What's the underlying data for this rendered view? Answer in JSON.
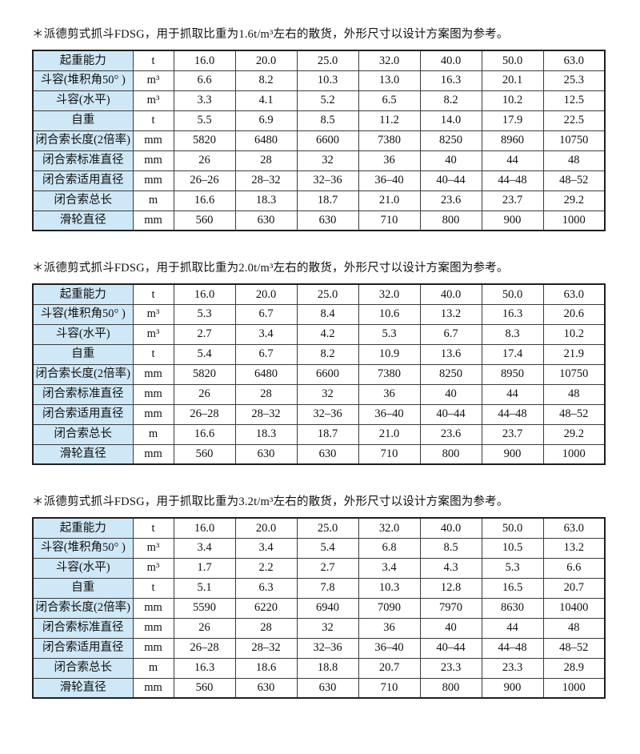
{
  "colors": {
    "label_bg": "#cfe8f7",
    "border": "#3c3c3c",
    "outer_border": "#1f1f1f",
    "text": "#111111",
    "page_bg": "#ffffff"
  },
  "tables": [
    {
      "caption": "＊派德剪式抓斗FDSG，用于抓取比重为1.6t/m³左右的散货，外形尺寸以设计方案图为参考。",
      "rows": [
        {
          "label": "起重能力",
          "unit": "t",
          "values": [
            "16.0",
            "20.0",
            "25.0",
            "32.0",
            "40.0",
            "50.0",
            "63.0"
          ]
        },
        {
          "label": "斗容(堆积角50° )",
          "unit": "m³",
          "values": [
            "6.6",
            "8.2",
            "10.3",
            "13.0",
            "16.3",
            "20.1",
            "25.3"
          ]
        },
        {
          "label": "斗容(水平)",
          "unit": "m³",
          "values": [
            "3.3",
            "4.1",
            "5.2",
            "6.5",
            "8.2",
            "10.2",
            "12.5"
          ]
        },
        {
          "label": "自重",
          "unit": "t",
          "values": [
            "5.5",
            "6.9",
            "8.5",
            "11.2",
            "14.0",
            "17.9",
            "22.5"
          ]
        },
        {
          "label": "闭合索长度(2倍率)",
          "unit": "mm",
          "values": [
            "5820",
            "6480",
            "6600",
            "7380",
            "8250",
            "8960",
            "10750"
          ]
        },
        {
          "label": "闭合索标准直径",
          "unit": "mm",
          "values": [
            "26",
            "28",
            "32",
            "36",
            "40",
            "44",
            "48"
          ]
        },
        {
          "label": "闭合索适用直径",
          "unit": "mm",
          "values": [
            "26–26",
            "28–32",
            "32–36",
            "36–40",
            "40–44",
            "44–48",
            "48–52"
          ]
        },
        {
          "label": "闭合索总长",
          "unit": "m",
          "values": [
            "16.6",
            "18.3",
            "18.7",
            "21.0",
            "23.6",
            "23.7",
            "29.2"
          ]
        },
        {
          "label": "滑轮直径",
          "unit": "mm",
          "values": [
            "560",
            "630",
            "630",
            "710",
            "800",
            "900",
            "1000"
          ]
        }
      ]
    },
    {
      "caption": "＊派德剪式抓斗FDSG，用于抓取比重为2.0t/m³左右的散货，外形尺寸以设计方案图为参考。",
      "rows": [
        {
          "label": "起重能力",
          "unit": "t",
          "values": [
            "16.0",
            "20.0",
            "25.0",
            "32.0",
            "40.0",
            "50.0",
            "63.0"
          ]
        },
        {
          "label": "斗容(堆积角50° )",
          "unit": "m³",
          "values": [
            "5.3",
            "6.7",
            "8.4",
            "10.6",
            "13.2",
            "16.3",
            "20.6"
          ]
        },
        {
          "label": "斗容(水平)",
          "unit": "m³",
          "values": [
            "2.7",
            "3.4",
            "4.2",
            "5.3",
            "6.7",
            "8.3",
            "10.2"
          ]
        },
        {
          "label": "自重",
          "unit": "t",
          "values": [
            "5.4",
            "6.7",
            "8.2",
            "10.9",
            "13.6",
            "17.4",
            "21.9"
          ]
        },
        {
          "label": "闭合索长度(2倍率)",
          "unit": "mm",
          "values": [
            "5820",
            "6480",
            "6600",
            "7380",
            "8250",
            "8950",
            "10750"
          ]
        },
        {
          "label": "闭合索标准直径",
          "unit": "mm",
          "values": [
            "26",
            "28",
            "32",
            "36",
            "40",
            "44",
            "48"
          ]
        },
        {
          "label": "闭合索适用直径",
          "unit": "mm",
          "values": [
            "26–28",
            "28–32",
            "32–36",
            "36–40",
            "40–44",
            "44–48",
            "48–52"
          ]
        },
        {
          "label": "闭合索总长",
          "unit": "m",
          "values": [
            "16.6",
            "18.3",
            "18.7",
            "21.0",
            "23.6",
            "23.7",
            "29.2"
          ]
        },
        {
          "label": "滑轮直径",
          "unit": "mm",
          "values": [
            "560",
            "630",
            "630",
            "710",
            "800",
            "900",
            "1000"
          ]
        }
      ]
    },
    {
      "caption": "＊派德剪式抓斗FDSG，用于抓取比重为3.2t/m³左右的散货，外形尺寸以设计方案图为参考。",
      "rows": [
        {
          "label": "起重能力",
          "unit": "t",
          "values": [
            "16.0",
            "20.0",
            "25.0",
            "32.0",
            "40.0",
            "50.0",
            "63.0"
          ]
        },
        {
          "label": "斗容(堆积角50° )",
          "unit": "m³",
          "values": [
            "3.4",
            "3.4",
            "5.4",
            "6.8",
            "8.5",
            "10.5",
            "13.2"
          ]
        },
        {
          "label": "斗容(水平)",
          "unit": "m³",
          "values": [
            "1.7",
            "2.2",
            "2.7",
            "3.4",
            "4.3",
            "5.3",
            "6.6"
          ]
        },
        {
          "label": "自重",
          "unit": "t",
          "values": [
            "5.1",
            "6.3",
            "7.8",
            "10.3",
            "12.8",
            "16.5",
            "20.7"
          ]
        },
        {
          "label": "闭合索长度(2倍率)",
          "unit": "mm",
          "values": [
            "5590",
            "6220",
            "6940",
            "7090",
            "7970",
            "8630",
            "10400"
          ]
        },
        {
          "label": "闭合索标准直径",
          "unit": "mm",
          "values": [
            "26",
            "28",
            "32",
            "36",
            "40",
            "44",
            "48"
          ]
        },
        {
          "label": "闭合索适用直径",
          "unit": "mm",
          "values": [
            "26–28",
            "28–32",
            "32–36",
            "36–40",
            "40–44",
            "44–48",
            "48–52"
          ]
        },
        {
          "label": "闭合索总长",
          "unit": "m",
          "values": [
            "16.3",
            "18.6",
            "18.8",
            "20.7",
            "23.3",
            "23.3",
            "28.9"
          ]
        },
        {
          "label": "滑轮直径",
          "unit": "mm",
          "values": [
            "560",
            "630",
            "630",
            "710",
            "800",
            "900",
            "1000"
          ]
        }
      ]
    }
  ]
}
